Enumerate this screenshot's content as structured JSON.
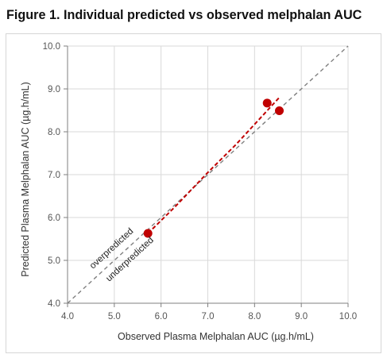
{
  "figure": {
    "title": "Figure 1. Individual predicted vs observed melphalan AUC"
  },
  "chart_data": {
    "type": "scatter",
    "xlabel": "Observed Plasma Melphalan AUC (µg.h/mL)",
    "ylabel": "Predicted  Plasma Melphalan AUC (µg.h/mL)",
    "xlim": [
      4.0,
      10.0
    ],
    "ylim": [
      4.0,
      10.0
    ],
    "x_ticks": [
      "4.0",
      "5.0",
      "6.0",
      "7.0",
      "8.0",
      "9.0",
      "10.0"
    ],
    "y_ticks": [
      "4.0",
      "5.0",
      "6.0",
      "7.0",
      "8.0",
      "9.0",
      "10.0"
    ],
    "grid": true,
    "points": [
      {
        "x": 5.72,
        "y": 5.63
      },
      {
        "x": 8.27,
        "y": 8.67
      },
      {
        "x": 8.53,
        "y": 8.49
      }
    ],
    "identity_line": {
      "x": [
        4.0,
        10.0
      ],
      "y": [
        4.0,
        10.0
      ]
    },
    "trend_line": {
      "x": [
        5.72,
        6.3,
        7.0,
        7.6,
        8.53
      ],
      "y": [
        5.63,
        6.25,
        7.05,
        7.7,
        8.8
      ]
    },
    "annotations": {
      "over": "overpredicted",
      "under": "underpredicted"
    },
    "colors": {
      "points": "#c00000",
      "trend": "#c00000",
      "identity": "#808080",
      "grid": "#d9d9d9",
      "axis": "#7f7f7f"
    }
  }
}
